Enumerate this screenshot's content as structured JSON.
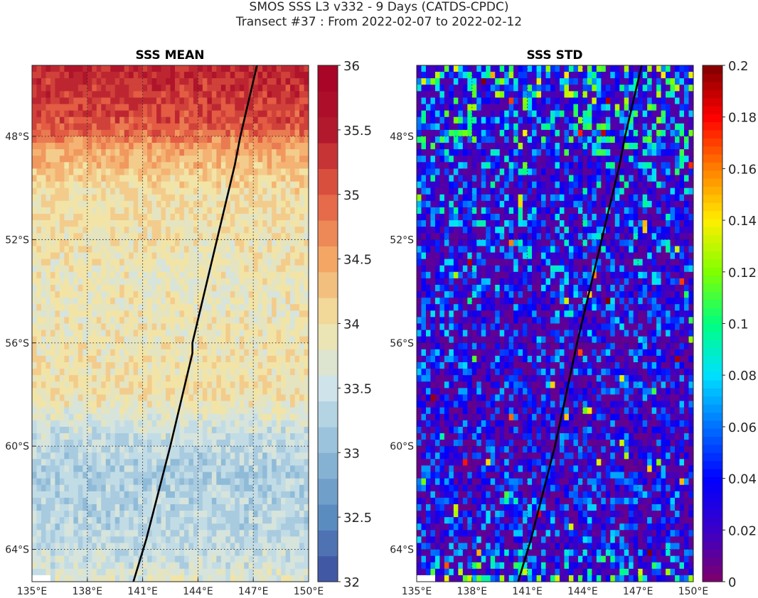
{
  "figure": {
    "title_line1": "SMOS SSS L3 v332 - 9 Days (CATDS-CPDC)",
    "title_line2": "Transect #37 : From 2022-02-07 to 2022-02-12"
  },
  "chart_data": [
    {
      "type": "heatmap",
      "title": "SSS MEAN",
      "xlabel": "",
      "ylabel": "",
      "x_ticks": [
        "135°E",
        "138°E",
        "141°E",
        "144°E",
        "147°E",
        "150°E"
      ],
      "y_ticks": [
        "48°S",
        "52°S",
        "56°S",
        "60°S",
        "64°S"
      ],
      "xlim": [
        135,
        150
      ],
      "ylim": [
        -65.25,
        -45.25
      ],
      "grid": true,
      "colorbar": {
        "min": 32,
        "max": 36,
        "levels": 20,
        "ticks": [
          "32",
          "32.5",
          "33",
          "33.5",
          "34",
          "34.5",
          "35",
          "35.5",
          "36"
        ],
        "colormap": [
          "#3b4c9e",
          "#5b8cc0",
          "#8fbbd8",
          "#cfe4ea",
          "#f2e4a6",
          "#f4a765",
          "#e35c43",
          "#b3192c",
          "#a50026"
        ]
      },
      "field_profile": [
        {
          "lat": -45.5,
          "sss": 35.4
        },
        {
          "lat": -47.5,
          "sss": 35.1
        },
        {
          "lat": -48.5,
          "sss": 34.5
        },
        {
          "lat": -50.0,
          "sss": 34.05
        },
        {
          "lat": -52.0,
          "sss": 33.95
        },
        {
          "lat": -54.0,
          "sss": 33.85
        },
        {
          "lat": -56.0,
          "sss": 33.9
        },
        {
          "lat": -58.0,
          "sss": 34.0
        },
        {
          "lat": -59.5,
          "sss": 33.45
        },
        {
          "lat": -61.0,
          "sss": 33.25
        },
        {
          "lat": -63.0,
          "sss": 33.35
        },
        {
          "lat": -64.5,
          "sss": 33.5
        },
        {
          "lat": -65.0,
          "sss": 33.7
        }
      ],
      "transect": [
        {
          "lon": 147.2,
          "lat": -45.25
        },
        {
          "lon": 146.3,
          "lat": -48.0
        },
        {
          "lon": 146.0,
          "lat": -49.1
        },
        {
          "lon": 144.8,
          "lat": -52.7
        },
        {
          "lon": 143.7,
          "lat": -56.0
        },
        {
          "lon": 143.7,
          "lat": -56.4
        },
        {
          "lon": 142.5,
          "lat": -60.0
        },
        {
          "lon": 141.2,
          "lat": -63.6
        },
        {
          "lon": 140.5,
          "lat": -65.25
        }
      ]
    },
    {
      "type": "heatmap",
      "title": "SSS STD",
      "xlabel": "",
      "ylabel": "",
      "x_ticks": [
        "135°E",
        "138°E",
        "141°E",
        "144°E",
        "147°E",
        "150°E"
      ],
      "y_ticks": [
        "48°S",
        "52°S",
        "56°S",
        "60°S",
        "64°S"
      ],
      "xlim": [
        135,
        150
      ],
      "ylim": [
        -65.25,
        -45.25
      ],
      "grid": true,
      "colorbar": {
        "min": 0,
        "max": 0.2,
        "ticks": [
          "0",
          "0.02",
          "0.04",
          "0.06",
          "0.08",
          "0.1",
          "0.12",
          "0.14",
          "0.16",
          "0.18",
          "0.2"
        ],
        "colormap": [
          "#7f006b",
          "#3b00c8",
          "#0000ff",
          "#0070ff",
          "#00e0ff",
          "#00ff80",
          "#80ff00",
          "#ffee00",
          "#ff8000",
          "#ff0000",
          "#800000"
        ]
      },
      "field_profile": [
        {
          "lat": -45.5,
          "std": 0.05
        },
        {
          "lat": -50.0,
          "std": 0.035
        },
        {
          "lat": -55.0,
          "std": 0.03
        },
        {
          "lat": -60.0,
          "std": 0.025
        },
        {
          "lat": -64.0,
          "std": 0.03
        },
        {
          "lat": -65.0,
          "std": 0.05
        }
      ],
      "transect": [
        {
          "lon": 147.2,
          "lat": -45.25
        },
        {
          "lon": 146.3,
          "lat": -48.0
        },
        {
          "lon": 146.0,
          "lat": -49.1
        },
        {
          "lon": 144.8,
          "lat": -52.7
        },
        {
          "lon": 143.7,
          "lat": -56.0
        },
        {
          "lon": 142.5,
          "lat": -60.0
        },
        {
          "lon": 141.2,
          "lat": -63.6
        },
        {
          "lon": 140.5,
          "lat": -65.25
        }
      ]
    }
  ]
}
